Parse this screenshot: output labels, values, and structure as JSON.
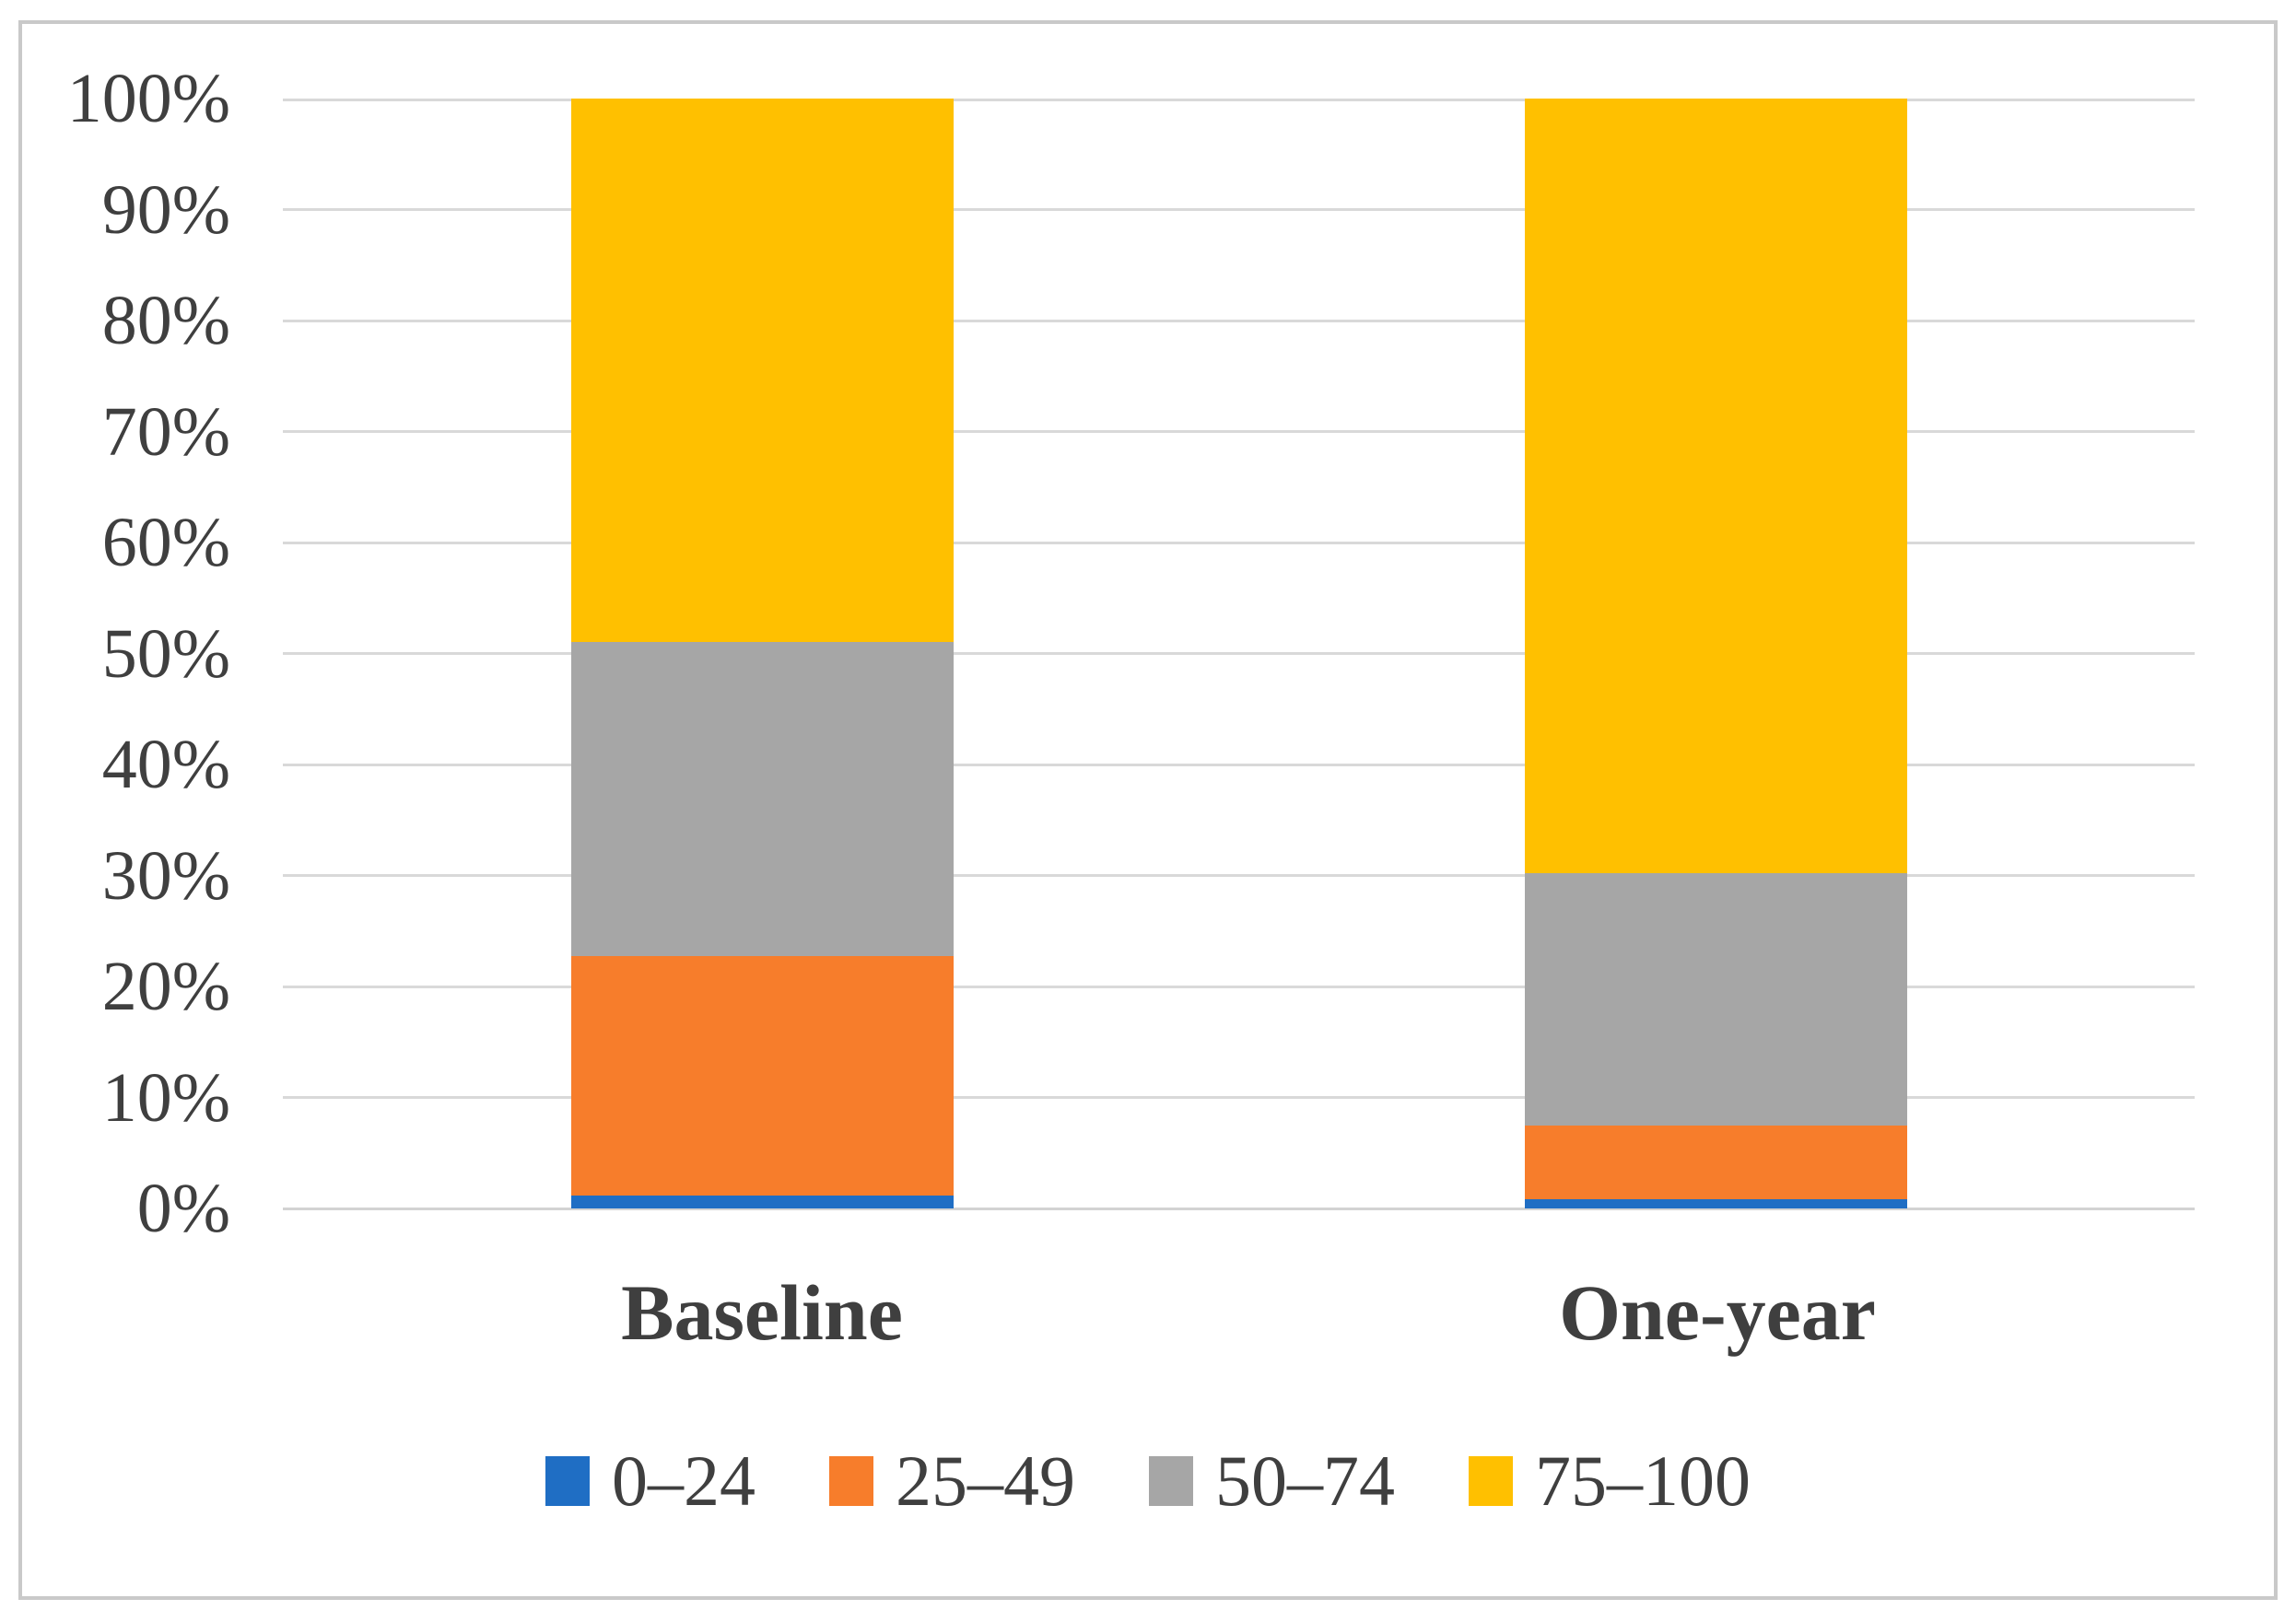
{
  "chart_data": {
    "type": "bar",
    "stacked": true,
    "percent_stacked": true,
    "title": "",
    "xlabel": "",
    "ylabel": "",
    "categories": [
      "Baseline",
      "One-year"
    ],
    "series": [
      {
        "name": "0–24",
        "color": "#1f6ec4",
        "values": [
          1.2,
          0.8
        ]
      },
      {
        "name": "25–49",
        "color": "#f77d2b",
        "values": [
          21.5,
          6.7
        ]
      },
      {
        "name": "50–74",
        "color": "#a6a6a6",
        "values": [
          28.3,
          22.7
        ]
      },
      {
        "name": "75–100",
        "color": "#ffc000",
        "values": [
          49.0,
          69.8
        ]
      }
    ],
    "ylim": [
      0,
      100
    ],
    "y_ticks": [
      "0%",
      "10%",
      "20%",
      "30%",
      "40%",
      "50%",
      "60%",
      "70%",
      "80%",
      "90%",
      "100%"
    ],
    "grid": true,
    "legend_position": "bottom"
  },
  "colors": {
    "gridline": "#d9d9d9",
    "axis_line": "#d3d3d3",
    "frame_border": "#c9c9c9",
    "text": "#3f3f3f",
    "background": "#ffffff"
  }
}
